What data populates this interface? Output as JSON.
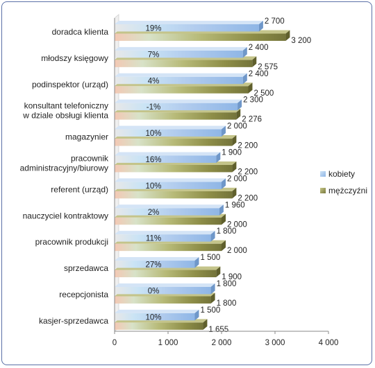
{
  "chart_data": {
    "type": "bar",
    "orientation": "horizontal",
    "categories": [
      "doradca klienta",
      "młodszy księgowy",
      "podinspektor (urząd)",
      "konsultant telefoniczny w dziale obsługi klienta",
      "magazynier",
      "pracownik administracyjny/biurowy",
      "referent (urząd)",
      "nauczyciel kontraktowy",
      "pracownik produkcji",
      "sprzedawca",
      "recepcjonista",
      "kasjer-sprzedawca"
    ],
    "category_lines": [
      [
        "doradca klienta"
      ],
      [
        "młodszy księgowy"
      ],
      [
        "podinspektor (urząd)"
      ],
      [
        "konsultant telefoniczny",
        "w dziale obsługi klienta"
      ],
      [
        "magazynier"
      ],
      [
        "pracownik",
        "administracyjny/biurowy"
      ],
      [
        "referent (urząd)"
      ],
      [
        "nauczyciel kontraktowy"
      ],
      [
        "pracownik produkcji"
      ],
      [
        "sprzedawca"
      ],
      [
        "recepcjonista"
      ],
      [
        "kasjer-sprzedawca"
      ]
    ],
    "series": [
      {
        "name": "kobiety",
        "color": "#9dc3ec",
        "values": [
          2700,
          2400,
          2400,
          2300,
          2000,
          1900,
          2000,
          1960,
          1800,
          1500,
          1800,
          1500
        ],
        "value_labels": [
          "2 700",
          "2 400",
          "2 400",
          "2 300",
          "2 000",
          "1 900",
          "2 000",
          "1 960",
          "1 800",
          "1 500",
          "1 800",
          "1 500"
        ]
      },
      {
        "name": "mężczyźni",
        "color": "#8f8f4a",
        "values": [
          3200,
          2575,
          2500,
          2276,
          2200,
          2200,
          2200,
          2000,
          2000,
          1900,
          1800,
          1655
        ],
        "value_labels": [
          "3 200",
          "2 575",
          "2 500",
          "2 276",
          "2 200",
          "2 200",
          "2 200",
          "2 000",
          "2 000",
          "1 900",
          "1 800",
          "1 655"
        ]
      }
    ],
    "gap_labels": [
      "19%",
      "7%",
      "4%",
      "-1%",
      "10%",
      "16%",
      "10%",
      "2%",
      "11%",
      "27%",
      "0%",
      "10%"
    ],
    "xlim": [
      0,
      4000
    ],
    "x_ticks": [
      0,
      1000,
      2000,
      3000,
      4000
    ],
    "x_tick_labels": [
      "0",
      "1 000",
      "2 000",
      "3 000",
      "4 000"
    ],
    "grid": false,
    "legend_position": "right",
    "title": "",
    "xlabel": "",
    "ylabel": ""
  }
}
